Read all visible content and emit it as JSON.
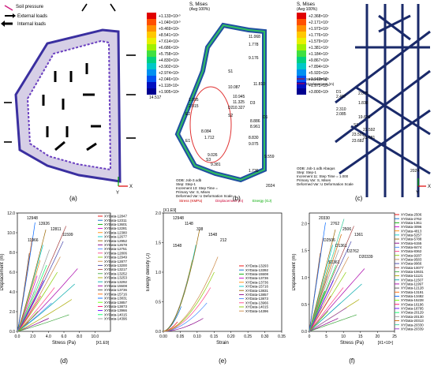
{
  "top": {
    "a": {
      "label": "(a)",
      "legend": [
        "Soil pressure",
        "External loads",
        "Internal loads"
      ]
    },
    "b": {
      "label": "(b)",
      "legend_title": "S, Mises",
      "legend_sub": "(Avg:100%)",
      "scale": [
        "+1.133×10¹⁰",
        "+1.040×10¹⁰",
        "+9.469×10⁹",
        "+8.541×10⁹",
        "+7.614×10⁹",
        "+6.686×10⁹",
        "+5.758×10⁹",
        "+4.830×10⁹",
        "+3.902×10⁹",
        "+2.974×10⁹",
        "+2.046×10⁹",
        "+1.118×10⁹",
        "+1.905×10⁸"
      ],
      "odb_lines": [
        "ODB: Job-3.odb",
        "Step: Step-1",
        "Increment    13: Step Time =",
        "Primary Var: S, Mises",
        "Deformed Var: U   Deformation Scale"
      ],
      "year": "2024",
      "bottom_legend": [
        "Stress (KMPa)",
        "Displacement (m)",
        "Energy (GJ)"
      ],
      "annotations": [
        "11.068",
        "1.778",
        "9.176",
        "S1",
        "10.087",
        "1.095",
        "2.015",
        "E2",
        "10.945",
        "11.325",
        "10.327",
        "D2",
        "S2",
        "11.810",
        "8.886",
        "8.961",
        "D3",
        "8.830",
        "9.075",
        "D1",
        "9.559",
        "14.517",
        "8.084",
        "1.712",
        "E1",
        "9.026",
        "9.381",
        "S3",
        "1.736"
      ]
    },
    "c": {
      "label": "(c)",
      "legend_title": "S, Mises",
      "legend_sub": "(Avg:100%)",
      "scale": [
        "+2.368×10⁷",
        "+2.171×10⁷",
        "+1.973×10⁷",
        "+1.776×10⁷",
        "+1.579×10⁷",
        "+1.381×10⁷",
        "+1.184×10⁷",
        "+9.867×10⁶",
        "+7.894×10⁶",
        "+5.920×10⁶",
        "+3.947×10⁶",
        "+1.973×10⁶",
        "+3.800×10¹"
      ],
      "mini_legend": [
        "Stress (MPa)",
        "Displacement (m)"
      ],
      "odb_lines": [
        "ODB: Job-1.odb    Abaqus",
        "Step: Step-1",
        "Increment    11: Step Time =    1.000",
        "Primary Var: S, Mises",
        "Deformed Var: U   Deformation Scale"
      ],
      "year": "2024",
      "annotations": [
        "D1",
        "2.076",
        "2.497",
        "1.838",
        "2.310",
        "2.085",
        "19.636",
        "S1",
        "21.592",
        "23.591",
        "23.681",
        "23.682"
      ]
    }
  },
  "chart_data": [
    {
      "panel_label": "(d)",
      "type": "line",
      "xlabel": "Stress (Pa)",
      "ylabel": "Displacement (m)",
      "x_multiplier": "[X1.E9]",
      "xlim": [
        0,
        12
      ],
      "ylim": [
        0,
        13
      ],
      "xticks": [
        "0.0",
        "2.0",
        "4.0",
        "6.0",
        "8.0",
        "10.0"
      ],
      "yticks": [
        "0.0",
        "2.0",
        "4.0",
        "6.0",
        "8.0",
        "10.0",
        "12.0"
      ],
      "annotations": [
        "12948",
        "13926",
        "12811",
        "11599",
        "11966"
      ],
      "legend_placement": "right",
      "legend": [
        "XYData-12847",
        "XYData-12311",
        "XYData-13601",
        "XYData-12281",
        "XYData-12380",
        "XYData-12677",
        "XYData-12952",
        "XYData-12678",
        "XYData-12751",
        "XYData-12806",
        "XYData-12949",
        "XYData-12877",
        "XYData-13200",
        "XYData-13217",
        "XYData-13252",
        "XYData-13253",
        "XYData-13292",
        "XYData-15508",
        "XYData-13736",
        "XYData-15716",
        "XYData-13831",
        "XYData-13857",
        "XYData-13873",
        "XYData-13966",
        "XYData-14015",
        "XYData-14396"
      ]
    },
    {
      "panel_label": "(e)",
      "type": "line",
      "xlabel": "Strain",
      "ylabel": "Energy density (J)",
      "y_multiplier": "[X1.E9]",
      "xlim": [
        0,
        0.35
      ],
      "ylim": [
        0,
        2.0
      ],
      "xticks": [
        "0.00",
        "0.05",
        "0.10",
        "0.15",
        "0.20",
        "0.25",
        "0.30",
        "0.35"
      ],
      "yticks": [
        "0.0",
        "0.5",
        "1.0",
        "1.5",
        "2.0"
      ],
      "annotations": [
        "12948",
        "1148",
        "338",
        "1548",
        "212",
        "1548"
      ],
      "legend_placement": "center-right",
      "legend": [
        "XYData-13293",
        "XYData-13392",
        "XYData-15508",
        "XYData-13736",
        "XYData-13736",
        "XYData-15716",
        "XYData-13831",
        "XYData-13857",
        "XYData-13873",
        "XYData-13966",
        "XYData-14015",
        "XYData-14396"
      ]
    },
    {
      "panel_label": "(f)",
      "type": "line",
      "xlabel": "Stress (Pa)",
      "ylabel": "Displacement (m)",
      "x_multiplier": "[X1×10⁶]",
      "xlim": [
        0,
        25
      ],
      "ylim": [
        0,
        2.2
      ],
      "xticks": [
        "0",
        "5",
        "10",
        "15",
        "20",
        "25"
      ],
      "yticks": [
        "0.0",
        "0.5",
        "1.0",
        "1.5",
        "2.0"
      ],
      "annotations": [
        "20330",
        "2762",
        "2506",
        "1361",
        "D2506",
        "D1361",
        "D2762",
        "D20339",
        "S1361"
      ],
      "legend_placement": "right",
      "legend": [
        "XYData-2506",
        "XYData-2762",
        "XYData-1361",
        "XYData-3096",
        "XYData-4813",
        "XYData-5257",
        "XYData-5788",
        "XYData-6155",
        "XYData-8474",
        "XYData-8362",
        "XYData-9287",
        "XYData-9583",
        "XYData-9966",
        "XYData-10077",
        "XYData-10631",
        "XYData-11121",
        "XYData-11507",
        "XYData-11997",
        "XYData-12128",
        "XYData-13191",
        "XYData-13482",
        "XYData-15228",
        "XYData-16196",
        "XYData-18795",
        "XYData-20129",
        "XYData-20130",
        "XYData-20313",
        "XYData-20330",
        "XYData-20339"
      ]
    }
  ]
}
